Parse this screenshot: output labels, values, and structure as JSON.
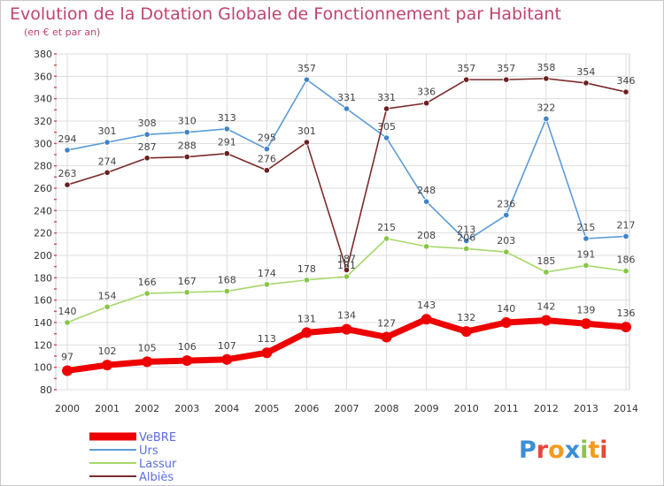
{
  "chart_data": {
    "type": "line",
    "title": "Evolution de la Dotation Globale de Fonctionnement par Habitant",
    "subtitle": "(en € et par an)",
    "xlabel": "",
    "ylabel": "",
    "x": [
      "2000",
      "2001",
      "2002",
      "2003",
      "2004",
      "2005",
      "2006",
      "2007",
      "2008",
      "2009",
      "2010",
      "2011",
      "2012",
      "2013",
      "2014"
    ],
    "ylim": [
      80,
      380
    ],
    "yticks": [
      80,
      100,
      120,
      140,
      160,
      180,
      200,
      220,
      240,
      260,
      280,
      300,
      320,
      340,
      360,
      380
    ],
    "grid": true,
    "legend_position": "bottom-left",
    "series": [
      {
        "name": "Urs",
        "color": "#5b9bd5",
        "point_color": "#3f83c6",
        "values": [
          294,
          301,
          308,
          310,
          313,
          295,
          357,
          331,
          305,
          248,
          213,
          236,
          322,
          215,
          217
        ]
      },
      {
        "name": "Albiès",
        "color": "#7b2b2b",
        "point_color": "#6a1f1f",
        "values": [
          263,
          274,
          287,
          288,
          291,
          276,
          301,
          187,
          331,
          336,
          357,
          357,
          358,
          354,
          346
        ]
      },
      {
        "name": "Lassur",
        "color": "#a6d86a",
        "point_color": "#86c546",
        "values": [
          140,
          154,
          166,
          167,
          168,
          174,
          178,
          181,
          215,
          208,
          206,
          203,
          185,
          191,
          186
        ]
      },
      {
        "name": "VeBRE",
        "color": "#ee0000",
        "point_color": "#ee0000",
        "values": [
          97,
          102,
          105,
          106,
          107,
          113,
          131,
          134,
          127,
          143,
          132,
          140,
          142,
          139,
          136
        ]
      }
    ],
    "legend_order": [
      "VeBRE",
      "Urs",
      "Lassur",
      "Albiès"
    ]
  },
  "logo": {
    "text": "Proxiti"
  }
}
